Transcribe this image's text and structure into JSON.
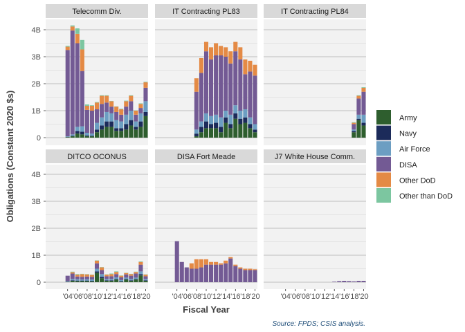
{
  "chart_data": {
    "type": "bar",
    "stacked": true,
    "faceted": true,
    "ylabel": "Obligations (Constant 2020 $s)",
    "xlabel": "Fiscal Year",
    "caption": "Source: FPDS; CSIS analysis.",
    "ylim": [
      0,
      4.2
    ],
    "y_ticks": [
      {
        "value": 0,
        "label": "0"
      },
      {
        "value": 1,
        "label": "1B"
      },
      {
        "value": 2,
        "label": "2B"
      },
      {
        "value": 3,
        "label": "3B"
      },
      {
        "value": 4,
        "label": "4B"
      }
    ],
    "x_ticks": [
      {
        "year": 2004,
        "label": "'04"
      },
      {
        "year": 2006,
        "label": "'06"
      },
      {
        "year": 2008,
        "label": "'08"
      },
      {
        "year": 2010,
        "label": "'10"
      },
      {
        "year": 2012,
        "label": "'12"
      },
      {
        "year": 2014,
        "label": "'14"
      },
      {
        "year": 2016,
        "label": "'16"
      },
      {
        "year": 2018,
        "label": "'18"
      },
      {
        "year": 2020,
        "label": "'20"
      }
    ],
    "years": [
      2000,
      2001,
      2002,
      2003,
      2004,
      2005,
      2006,
      2007,
      2008,
      2009,
      2010,
      2011,
      2012,
      2013,
      2014,
      2015,
      2016,
      2017,
      2018,
      2019,
      2020
    ],
    "legend_position": "right",
    "series": [
      {
        "name": "Army",
        "color": "#2E5E2E"
      },
      {
        "name": "Navy",
        "color": "#1C2B5A"
      },
      {
        "name": "Air Force",
        "color": "#6C9EC2"
      },
      {
        "name": "DISA",
        "color": "#735A94"
      },
      {
        "name": "Other DoD",
        "color": "#E48A45"
      },
      {
        "name": "Other than DoD",
        "color": "#7CC6A0"
      }
    ],
    "panels": [
      {
        "title": "Telecomm Div.",
        "stacks": [
          [
            0,
            0,
            0,
            0,
            0,
            0
          ],
          [
            0,
            0,
            0,
            0,
            0,
            0
          ],
          [
            0,
            0,
            0,
            0,
            0,
            0
          ],
          [
            0,
            0,
            0,
            0,
            0,
            0
          ],
          [
            0.02,
            0.01,
            0.02,
            3.2,
            0.12,
            0.03
          ],
          [
            0.05,
            0.02,
            0.05,
            3.85,
            0.15,
            0.04
          ],
          [
            0.15,
            0.1,
            0.15,
            3.1,
            0.35,
            0.2
          ],
          [
            0.12,
            0.1,
            0.2,
            2.05,
            0.8,
            0.35
          ],
          [
            0.05,
            0.03,
            0.1,
            0.85,
            0.15,
            0.05
          ],
          [
            0.05,
            0.02,
            0.08,
            0.85,
            0.18,
            0.02
          ],
          [
            0.2,
            0.1,
            0.25,
            0.5,
            0.25,
            0.02
          ],
          [
            0.3,
            0.15,
            0.3,
            0.5,
            0.3,
            0.02
          ],
          [
            0.4,
            0.2,
            0.35,
            0.35,
            0.25,
            0.02
          ],
          [
            0.4,
            0.2,
            0.3,
            0.25,
            0.2,
            0.01
          ],
          [
            0.25,
            0.1,
            0.3,
            0.3,
            0.2,
            0.01
          ],
          [
            0.25,
            0.1,
            0.25,
            0.25,
            0.2,
            0.02
          ],
          [
            0.3,
            0.2,
            0.35,
            0.3,
            0.2,
            0.02
          ],
          [
            0.45,
            0.2,
            0.35,
            0.35,
            0.2,
            0.02
          ],
          [
            0.3,
            0.1,
            0.2,
            0.25,
            0.15,
            0.01
          ],
          [
            0.4,
            0.2,
            0.3,
            0.2,
            0.15,
            0.02
          ],
          [
            0.8,
            0.15,
            0.4,
            0.5,
            0.2,
            0.02
          ]
        ]
      },
      {
        "title": "IT Contracting PL83",
        "stacks": [
          [
            0,
            0,
            0,
            0,
            0,
            0
          ],
          [
            0,
            0,
            0,
            0,
            0,
            0
          ],
          [
            0,
            0,
            0,
            0,
            0,
            0
          ],
          [
            0,
            0,
            0,
            0,
            0,
            0
          ],
          [
            0,
            0,
            0,
            0,
            0,
            0
          ],
          [
            0,
            0,
            0,
            0,
            0,
            0
          ],
          [
            0,
            0,
            0,
            0,
            0,
            0
          ],
          [
            0,
            0,
            0,
            0,
            0,
            0
          ],
          [
            0.05,
            0.1,
            0.15,
            1.4,
            0.5,
            0
          ],
          [
            0.2,
            0.2,
            0.2,
            1.8,
            0.55,
            0
          ],
          [
            0.35,
            0.25,
            0.3,
            2.3,
            0.35,
            0
          ],
          [
            0.35,
            0.15,
            0.3,
            2.1,
            0.45,
            0
          ],
          [
            0.35,
            0.2,
            0.3,
            2.2,
            0.45,
            0
          ],
          [
            0.2,
            0.2,
            0.35,
            2.3,
            0.35,
            0
          ],
          [
            0.55,
            0.2,
            0.25,
            2.0,
            0.35,
            0
          ],
          [
            0.35,
            0.15,
            0.35,
            1.9,
            0.45,
            0
          ],
          [
            0.7,
            0.2,
            0.3,
            2.0,
            0.35,
            0
          ],
          [
            0.5,
            0.2,
            0.3,
            1.9,
            0.45,
            0
          ],
          [
            0.55,
            0.2,
            0.3,
            1.3,
            0.55,
            0
          ],
          [
            0.35,
            0.15,
            0.25,
            1.7,
            0.4,
            0
          ],
          [
            0.2,
            0.1,
            0.2,
            1.8,
            0.4,
            0
          ]
        ]
      },
      {
        "title": "IT Contracting PL84",
        "stacks": [
          [
            0,
            0,
            0,
            0,
            0,
            0
          ],
          [
            0,
            0,
            0,
            0,
            0,
            0
          ],
          [
            0,
            0,
            0,
            0,
            0,
            0
          ],
          [
            0,
            0,
            0,
            0,
            0,
            0
          ],
          [
            0,
            0,
            0,
            0,
            0,
            0
          ],
          [
            0,
            0,
            0,
            0,
            0,
            0
          ],
          [
            0,
            0,
            0,
            0,
            0,
            0
          ],
          [
            0,
            0,
            0,
            0,
            0,
            0
          ],
          [
            0,
            0,
            0,
            0,
            0,
            0
          ],
          [
            0,
            0,
            0,
            0,
            0,
            0
          ],
          [
            0,
            0,
            0,
            0,
            0,
            0
          ],
          [
            0,
            0,
            0,
            0,
            0,
            0
          ],
          [
            0,
            0,
            0,
            0,
            0,
            0
          ],
          [
            0,
            0,
            0,
            0,
            0,
            0
          ],
          [
            0,
            0,
            0,
            0,
            0,
            0
          ],
          [
            0,
            0,
            0,
            0,
            0,
            0
          ],
          [
            0,
            0,
            0,
            0,
            0,
            0
          ],
          [
            0,
            0,
            0,
            0,
            0,
            0
          ],
          [
            0.2,
            0.05,
            0.05,
            0.2,
            0.05,
            0.02
          ],
          [
            0.65,
            0.05,
            0.15,
            0.6,
            0.1,
            0.02
          ],
          [
            0.45,
            0.1,
            0.3,
            0.85,
            0.15,
            0.02
          ]
        ]
      },
      {
        "title": "DITCO OCONUS",
        "stacks": [
          [
            0,
            0,
            0,
            0,
            0,
            0
          ],
          [
            0,
            0,
            0,
            0,
            0,
            0
          ],
          [
            0,
            0,
            0,
            0,
            0,
            0
          ],
          [
            0,
            0,
            0,
            0,
            0,
            0
          ],
          [
            0.01,
            0.01,
            0.02,
            0.2,
            0,
            0
          ],
          [
            0.05,
            0.02,
            0.05,
            0.2,
            0.05,
            0.02
          ],
          [
            0.04,
            0.02,
            0.05,
            0.1,
            0.07,
            0.02
          ],
          [
            0.04,
            0.02,
            0.04,
            0.1,
            0.1,
            0.01
          ],
          [
            0.04,
            0.02,
            0.05,
            0.1,
            0.08,
            0.01
          ],
          [
            0.03,
            0.02,
            0.05,
            0.1,
            0.07,
            0.01
          ],
          [
            0.35,
            0.05,
            0.1,
            0.2,
            0.1,
            0.01
          ],
          [
            0.15,
            0.05,
            0.1,
            0.15,
            0.1,
            0.01
          ],
          [
            0.05,
            0.02,
            0.05,
            0.1,
            0.06,
            0.01
          ],
          [
            0.05,
            0.02,
            0.05,
            0.1,
            0.08,
            0.02
          ],
          [
            0.1,
            0.02,
            0.06,
            0.12,
            0.08,
            0.02
          ],
          [
            0.02,
            0.02,
            0.04,
            0.1,
            0.06,
            0.01
          ],
          [
            0.1,
            0.02,
            0.05,
            0.12,
            0.05,
            0.01
          ],
          [
            0.05,
            0.02,
            0.05,
            0.12,
            0.06,
            0.01
          ],
          [
            0.1,
            0.02,
            0.05,
            0.15,
            0.06,
            0.01
          ],
          [
            0.25,
            0.05,
            0.1,
            0.25,
            0.1,
            0.02
          ],
          [
            0.05,
            0.02,
            0.05,
            0.1,
            0.06,
            0.01
          ]
        ]
      },
      {
        "title": "DISA Fort Meade",
        "stacks": [
          [
            0,
            0,
            0,
            0,
            0,
            0
          ],
          [
            0,
            0,
            0,
            0,
            0,
            0
          ],
          [
            0,
            0,
            0,
            0,
            0,
            0
          ],
          [
            0,
            0,
            0,
            0,
            0,
            0
          ],
          [
            0,
            0,
            0,
            1.52,
            0,
            0
          ],
          [
            0,
            0,
            0,
            0.75,
            0,
            0
          ],
          [
            0,
            0,
            0,
            0.55,
            0,
            0
          ],
          [
            0,
            0,
            0,
            0.5,
            0.2,
            0
          ],
          [
            0,
            0,
            0,
            0.5,
            0.35,
            0
          ],
          [
            0,
            0,
            0,
            0.55,
            0.3,
            0
          ],
          [
            0,
            0,
            0,
            0.65,
            0.2,
            0
          ],
          [
            0,
            0,
            0,
            0.65,
            0.1,
            0
          ],
          [
            0,
            0,
            0,
            0.65,
            0.1,
            0
          ],
          [
            0,
            0,
            0,
            0.65,
            0.05,
            0
          ],
          [
            0,
            0,
            0,
            0.7,
            0.1,
            0
          ],
          [
            0,
            0,
            0,
            0.88,
            0.05,
            0
          ],
          [
            0,
            0,
            0,
            0.6,
            0.05,
            0
          ],
          [
            0,
            0,
            0,
            0.5,
            0.05,
            0
          ],
          [
            0,
            0,
            0,
            0.45,
            0.05,
            0
          ],
          [
            0,
            0,
            0,
            0.45,
            0.05,
            0
          ],
          [
            0,
            0,
            0,
            0.45,
            0.03,
            0
          ]
        ]
      },
      {
        "title": "J7 White House Comm.",
        "stacks": [
          [
            0,
            0,
            0,
            0,
            0,
            0
          ],
          [
            0,
            0,
            0,
            0,
            0,
            0
          ],
          [
            0,
            0,
            0,
            0,
            0,
            0
          ],
          [
            0,
            0,
            0,
            0,
            0,
            0
          ],
          [
            0,
            0,
            0,
            0,
            0,
            0
          ],
          [
            0,
            0,
            0,
            0,
            0,
            0
          ],
          [
            0,
            0,
            0,
            0,
            0,
            0
          ],
          [
            0,
            0,
            0,
            0,
            0,
            0
          ],
          [
            0,
            0,
            0,
            0,
            0,
            0
          ],
          [
            0,
            0,
            0,
            0,
            0,
            0
          ],
          [
            0,
            0,
            0,
            0,
            0,
            0
          ],
          [
            0,
            0,
            0,
            0,
            0,
            0
          ],
          [
            0,
            0,
            0,
            0,
            0,
            0
          ],
          [
            0,
            0,
            0,
            0,
            0,
            0
          ],
          [
            0,
            0,
            0,
            0.02,
            0,
            0
          ],
          [
            0,
            0,
            0,
            0.04,
            0,
            0
          ],
          [
            0,
            0,
            0,
            0.05,
            0,
            0
          ],
          [
            0,
            0,
            0,
            0.04,
            0,
            0
          ],
          [
            0,
            0,
            0,
            0.03,
            0,
            0
          ],
          [
            0,
            0,
            0,
            0.05,
            0,
            0
          ],
          [
            0,
            0,
            0,
            0.05,
            0,
            0
          ]
        ]
      }
    ]
  }
}
